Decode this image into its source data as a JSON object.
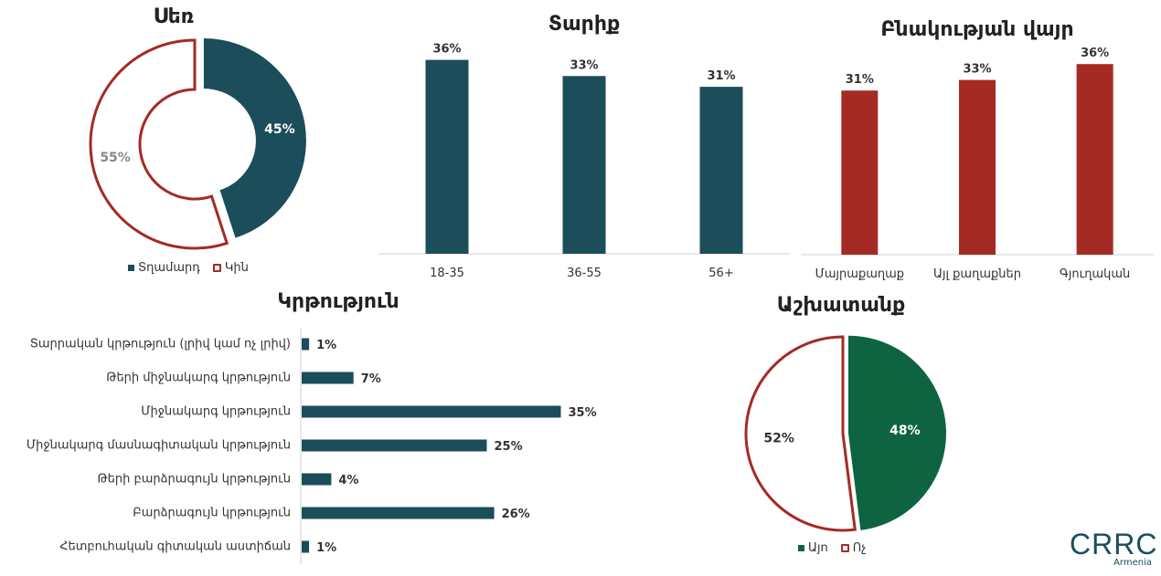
{
  "colors": {
    "teal": "#1b4d5b",
    "red": "#a52a24",
    "green": "#0e6440",
    "axis": "#d0d0d0"
  },
  "chart_data": [
    {
      "id": "sex",
      "type": "pie",
      "variant": "donut",
      "title": "Սեռ",
      "series": [
        {
          "name": "Տղամարդ",
          "value": 45,
          "label": "45%"
        },
        {
          "name": "Կին",
          "value": 55,
          "label": "55%"
        }
      ],
      "legend": [
        "Տղամարդ",
        "Կին"
      ]
    },
    {
      "id": "age",
      "type": "bar",
      "title": "Տարիք",
      "categories": [
        "18-35",
        "36-55",
        "56+"
      ],
      "values": [
        36,
        33,
        31
      ],
      "labels": [
        "36%",
        "33%",
        "31%"
      ]
    },
    {
      "id": "place",
      "type": "bar",
      "title": "Բնակության վայր",
      "categories": [
        "Մայրաքաղաք",
        "Այլ քաղաքներ",
        "Գյուղական"
      ],
      "values": [
        31,
        33,
        36
      ],
      "labels": [
        "31%",
        "33%",
        "36%"
      ]
    },
    {
      "id": "education",
      "type": "bar",
      "orientation": "horizontal",
      "title": "Կրթություն",
      "categories": [
        "Տարրական կրթություն (լրիվ կամ ոչ լրիվ)",
        "Թերի միջնակարգ կրթություն",
        "Միջնակարգ կրթություն",
        "Միջնակարգ մասնագիտական կրթություն",
        "Թերի բարձրագույն կրթություն",
        "Բարձրագույն կրթություն",
        "Հետբուհական գիտական աստիճան"
      ],
      "values": [
        1,
        7,
        35,
        25,
        4,
        26,
        1
      ],
      "labels": [
        "1%",
        "7%",
        "35%",
        "25%",
        "4%",
        "26%",
        "1%"
      ]
    },
    {
      "id": "work",
      "type": "pie",
      "title": "Աշխատանք",
      "series": [
        {
          "name": "Այո",
          "value": 48,
          "label": "48%"
        },
        {
          "name": "Ոչ",
          "value": 52,
          "label": "52%"
        }
      ],
      "legend": [
        "Այո",
        "Ոչ"
      ]
    }
  ],
  "logo": {
    "main": "CRRC",
    "sub": "Armenia"
  }
}
